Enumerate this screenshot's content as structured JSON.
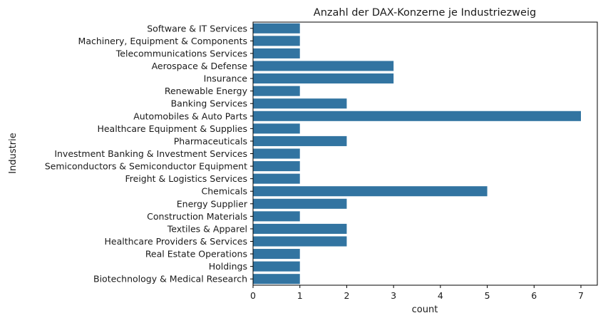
{
  "chart_data": {
    "type": "bar",
    "orientation": "horizontal",
    "title": "Anzahl der DAX-Konzerne je Industriezweig",
    "xlabel": "count",
    "ylabel": "Industrie",
    "xlim": [
      0,
      7.35
    ],
    "xticks": [
      "0",
      "1",
      "2",
      "3",
      "4",
      "5",
      "6",
      "7"
    ],
    "grid": false,
    "bar_color": "#3274a1",
    "categories": [
      "Software & IT Services",
      "Machinery, Equipment & Components",
      "Telecommunications Services",
      "Aerospace & Defense",
      "Insurance",
      "Renewable Energy",
      "Banking Services",
      "Automobiles & Auto Parts",
      "Healthcare Equipment & Supplies",
      "Pharmaceuticals",
      "Investment Banking & Investment Services",
      "Semiconductors & Semiconductor Equipment",
      "Freight & Logistics Services",
      "Chemicals",
      "Energy Supplier",
      "Construction Materials",
      "Textiles & Apparel",
      "Healthcare Providers & Services",
      "Real Estate Operations",
      "Holdings",
      "Biotechnology & Medical Research"
    ],
    "values": [
      1,
      1,
      1,
      3,
      3,
      1,
      2,
      7,
      1,
      2,
      1,
      1,
      1,
      5,
      2,
      1,
      2,
      2,
      1,
      1,
      1
    ]
  }
}
